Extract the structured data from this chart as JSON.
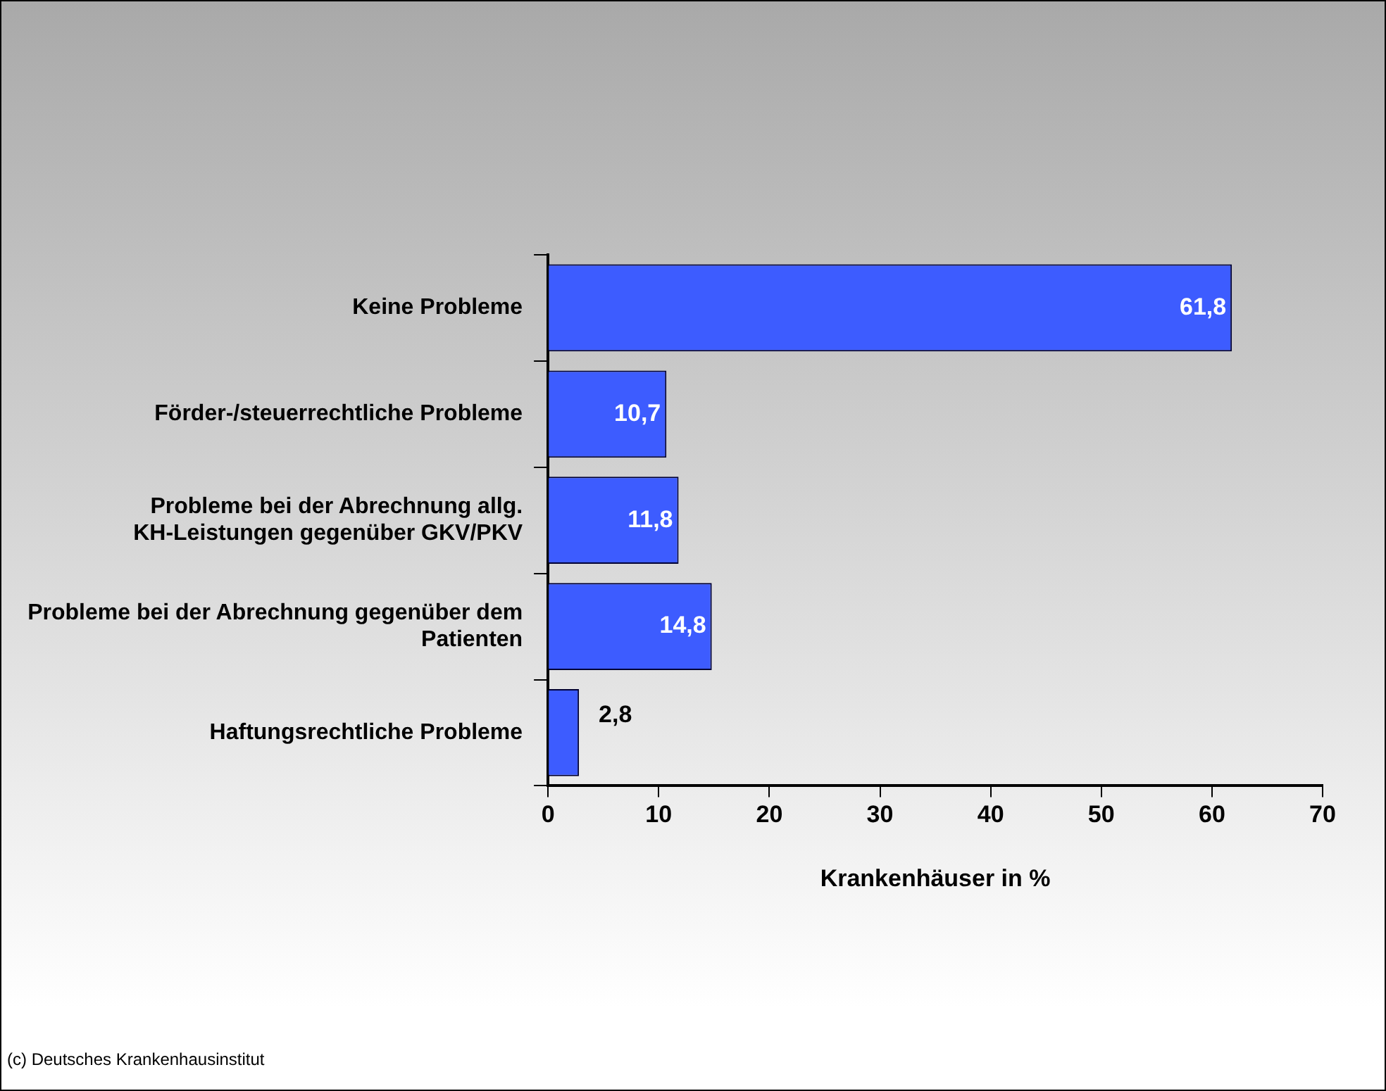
{
  "chart_data": {
    "type": "bar",
    "orientation": "horizontal",
    "xlabel": "Krankenhäuser in %",
    "categories": [
      "Keine Probleme",
      "Förder-/steuerrechtliche Probleme",
      "Probleme bei der Abrechnung allg. KH-Leistungen gegenüber GKV/PKV",
      "Probleme bei der Abrechnung gegenüber dem Patienten",
      "Haftungsrechtliche Probleme"
    ],
    "values": [
      61.8,
      10.7,
      11.8,
      14.8,
      2.8
    ],
    "color": "#3d5cff",
    "xlim": [
      0,
      70
    ],
    "xticks": [
      0,
      10,
      20,
      30,
      40,
      50,
      60,
      70
    ],
    "value_labels": [
      "61,8",
      "10,7",
      "11,8",
      "14,8",
      "2,8"
    ],
    "grid": false,
    "legend": false,
    "annotations": [
      "(c) Deutsches Krankenhausinstitut"
    ]
  }
}
